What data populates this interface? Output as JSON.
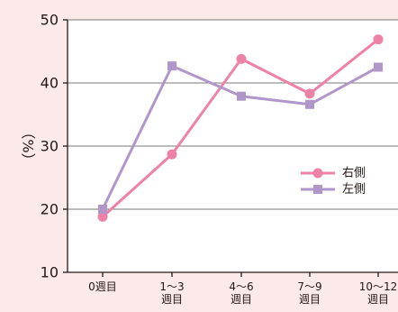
{
  "chart_data": {
    "type": "line",
    "categories": [
      [
        "0週目"
      ],
      [
        "1～3",
        "週目"
      ],
      [
        "4～6",
        "週目"
      ],
      [
        "7～9",
        "週目"
      ],
      [
        "10～12",
        "週目"
      ]
    ],
    "series": [
      {
        "name": "右側",
        "values": [
          18.8,
          28.7,
          43.8,
          38.3,
          46.9
        ],
        "color": "#ee82a6",
        "marker": "circle"
      },
      {
        "name": "左側",
        "values": [
          20.0,
          42.7,
          37.9,
          36.6,
          42.5
        ],
        "color": "#b197c9",
        "marker": "square"
      }
    ],
    "ylabel": "（%）",
    "ylim": [
      10,
      50
    ],
    "yticks": [
      10,
      20,
      30,
      40,
      50
    ],
    "grid": true,
    "legend_position": "right"
  }
}
